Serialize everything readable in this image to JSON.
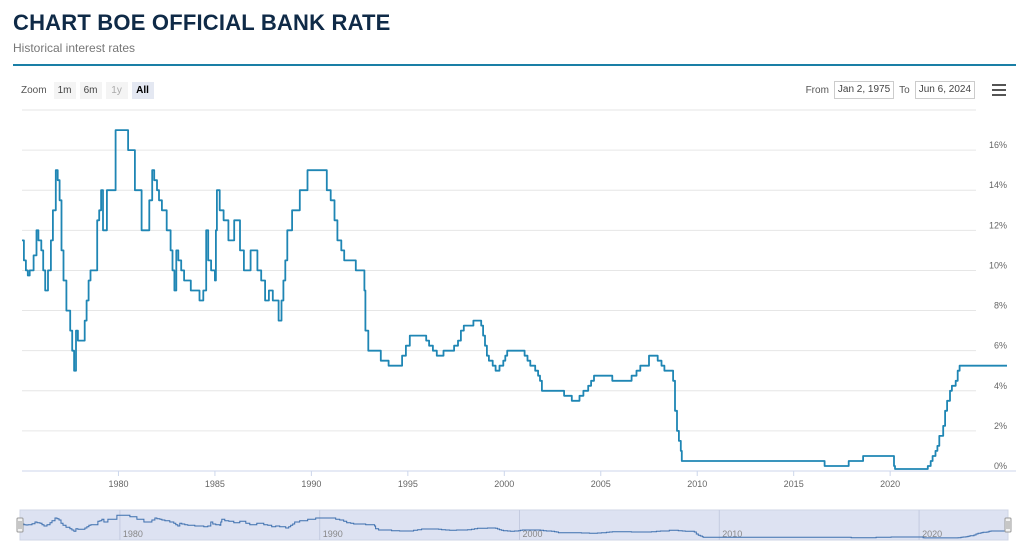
{
  "header": {
    "title": "CHART BOE OFFICIAL BANK RATE",
    "subtitle": "Historical interest rates"
  },
  "toolbar": {
    "zoom_label": "Zoom",
    "zoom_buttons": [
      {
        "label": "1m",
        "state": "normal"
      },
      {
        "label": "6m",
        "state": "normal"
      },
      {
        "label": "1y",
        "state": "disabled"
      },
      {
        "label": "All",
        "state": "active"
      }
    ],
    "from_label": "From",
    "from_value": "Jan 2, 1975",
    "to_label": "To",
    "to_value": "Jun 6, 2024",
    "menu_icon": "hamburger-menu-icon"
  },
  "colors": {
    "line": "#1f86b4",
    "grid": "#e6e6e6",
    "navigator_fill": "#dde2f2",
    "navigator_line": "#3d6fae"
  },
  "chart_data": {
    "type": "line",
    "title": "CHART BOE OFFICIAL BANK RATE",
    "subtitle": "Historical interest rates",
    "y_axis_position": "right",
    "xlim": [
      1975.0,
      2024.45
    ],
    "ylim": [
      0,
      18
    ],
    "x_ticks": [
      1980,
      1985,
      1990,
      1995,
      2000,
      2005,
      2010,
      2015,
      2020
    ],
    "x_tick_labels": [
      "1980",
      "1985",
      "1990",
      "1995",
      "2000",
      "2005",
      "2010",
      "2015",
      "2020"
    ],
    "y_ticks": [
      0,
      2,
      4,
      6,
      8,
      10,
      12,
      14,
      16
    ],
    "y_tick_labels": [
      "0%",
      "2%",
      "4%",
      "6%",
      "8%",
      "10%",
      "12%",
      "14%",
      "16%"
    ],
    "grid": true,
    "navigator": {
      "x_ticks": [
        1980,
        1990,
        2000,
        2010,
        2020
      ],
      "x_tick_labels": [
        "1980",
        "1990",
        "2000",
        "2010",
        "2020"
      ]
    },
    "series": [
      {
        "step": true,
        "points": [
          [
            1975.0,
            11.5
          ],
          [
            1975.1,
            10.5
          ],
          [
            1975.2,
            10.0
          ],
          [
            1975.3,
            9.75
          ],
          [
            1975.4,
            10.0
          ],
          [
            1975.6,
            10.75
          ],
          [
            1975.75,
            12.0
          ],
          [
            1975.85,
            11.5
          ],
          [
            1976.0,
            11.0
          ],
          [
            1976.1,
            10.0
          ],
          [
            1976.2,
            9.0
          ],
          [
            1976.35,
            10.0
          ],
          [
            1976.5,
            11.5
          ],
          [
            1976.6,
            13.0
          ],
          [
            1976.75,
            15.0
          ],
          [
            1976.85,
            14.5
          ],
          [
            1976.95,
            13.5
          ],
          [
            1977.05,
            11.0
          ],
          [
            1977.15,
            9.5
          ],
          [
            1977.3,
            8.0
          ],
          [
            1977.5,
            7.0
          ],
          [
            1977.6,
            6.0
          ],
          [
            1977.7,
            5.0
          ],
          [
            1977.8,
            7.0
          ],
          [
            1977.9,
            6.5
          ],
          [
            1978.1,
            6.5
          ],
          [
            1978.25,
            7.5
          ],
          [
            1978.35,
            8.5
          ],
          [
            1978.45,
            9.5
          ],
          [
            1978.55,
            10.0
          ],
          [
            1978.9,
            12.5
          ],
          [
            1979.0,
            13.0
          ],
          [
            1979.1,
            14.0
          ],
          [
            1979.2,
            12.0
          ],
          [
            1979.4,
            14.0
          ],
          [
            1979.85,
            17.0
          ],
          [
            1980.5,
            16.0
          ],
          [
            1980.85,
            14.0
          ],
          [
            1981.2,
            12.0
          ],
          [
            1981.6,
            13.5
          ],
          [
            1981.75,
            15.0
          ],
          [
            1981.85,
            14.5
          ],
          [
            1982.0,
            14.0
          ],
          [
            1982.1,
            13.5
          ],
          [
            1982.25,
            13.0
          ],
          [
            1982.5,
            12.0
          ],
          [
            1982.7,
            11.0
          ],
          [
            1982.8,
            10.0
          ],
          [
            1982.9,
            9.0
          ],
          [
            1983.0,
            11.0
          ],
          [
            1983.1,
            10.5
          ],
          [
            1983.25,
            10.0
          ],
          [
            1983.4,
            9.5
          ],
          [
            1983.75,
            9.0
          ],
          [
            1984.2,
            8.5
          ],
          [
            1984.4,
            9.0
          ],
          [
            1984.55,
            12.0
          ],
          [
            1984.65,
            10.5
          ],
          [
            1984.8,
            10.0
          ],
          [
            1985.0,
            9.5
          ],
          [
            1985.05,
            12.0
          ],
          [
            1985.1,
            14.0
          ],
          [
            1985.25,
            13.0
          ],
          [
            1985.45,
            12.5
          ],
          [
            1985.7,
            11.5
          ],
          [
            1986.0,
            12.5
          ],
          [
            1986.3,
            11.0
          ],
          [
            1986.5,
            10.0
          ],
          [
            1986.85,
            11.0
          ],
          [
            1987.2,
            10.0
          ],
          [
            1987.4,
            9.5
          ],
          [
            1987.6,
            8.5
          ],
          [
            1987.8,
            9.0
          ],
          [
            1988.0,
            8.5
          ],
          [
            1988.3,
            7.5
          ],
          [
            1988.45,
            8.5
          ],
          [
            1988.55,
            9.5
          ],
          [
            1988.65,
            10.5
          ],
          [
            1988.75,
            12.0
          ],
          [
            1989.0,
            13.0
          ],
          [
            1989.4,
            14.0
          ],
          [
            1989.8,
            15.0
          ],
          [
            1990.8,
            14.0
          ],
          [
            1991.0,
            13.5
          ],
          [
            1991.2,
            12.5
          ],
          [
            1991.35,
            11.5
          ],
          [
            1991.55,
            11.0
          ],
          [
            1991.7,
            10.5
          ],
          [
            1992.3,
            10.0
          ],
          [
            1992.75,
            9.0
          ],
          [
            1992.8,
            7.0
          ],
          [
            1992.95,
            6.0
          ],
          [
            1993.6,
            5.5
          ],
          [
            1994.0,
            5.25
          ],
          [
            1994.7,
            5.75
          ],
          [
            1994.9,
            6.25
          ],
          [
            1995.1,
            6.75
          ],
          [
            1995.95,
            6.5
          ],
          [
            1996.1,
            6.25
          ],
          [
            1996.3,
            6.0
          ],
          [
            1996.5,
            5.75
          ],
          [
            1996.85,
            6.0
          ],
          [
            1997.4,
            6.25
          ],
          [
            1997.6,
            6.5
          ],
          [
            1997.75,
            7.0
          ],
          [
            1997.9,
            7.25
          ],
          [
            1998.4,
            7.5
          ],
          [
            1998.8,
            7.25
          ],
          [
            1998.9,
            6.75
          ],
          [
            1999.0,
            6.25
          ],
          [
            1999.1,
            5.75
          ],
          [
            1999.2,
            5.5
          ],
          [
            1999.4,
            5.25
          ],
          [
            1999.55,
            5.0
          ],
          [
            1999.75,
            5.25
          ],
          [
            1999.95,
            5.5
          ],
          [
            2000.05,
            5.75
          ],
          [
            2000.15,
            6.0
          ],
          [
            2001.05,
            5.75
          ],
          [
            2001.2,
            5.5
          ],
          [
            2001.35,
            5.25
          ],
          [
            2001.6,
            5.0
          ],
          [
            2001.75,
            4.75
          ],
          [
            2001.85,
            4.5
          ],
          [
            2001.95,
            4.0
          ],
          [
            2003.1,
            3.75
          ],
          [
            2003.5,
            3.5
          ],
          [
            2003.9,
            3.75
          ],
          [
            2004.1,
            4.0
          ],
          [
            2004.35,
            4.25
          ],
          [
            2004.5,
            4.5
          ],
          [
            2004.65,
            4.75
          ],
          [
            2005.6,
            4.5
          ],
          [
            2006.6,
            4.75
          ],
          [
            2006.85,
            5.0
          ],
          [
            2007.05,
            5.25
          ],
          [
            2007.5,
            5.75
          ],
          [
            2007.95,
            5.5
          ],
          [
            2008.15,
            5.25
          ],
          [
            2008.3,
            5.0
          ],
          [
            2008.75,
            4.5
          ],
          [
            2008.85,
            3.0
          ],
          [
            2008.95,
            2.0
          ],
          [
            2009.05,
            1.5
          ],
          [
            2009.15,
            1.0
          ],
          [
            2009.2,
            0.5
          ],
          [
            2016.6,
            0.25
          ],
          [
            2017.85,
            0.5
          ],
          [
            2018.6,
            0.75
          ],
          [
            2020.2,
            0.25
          ],
          [
            2020.25,
            0.1
          ],
          [
            2021.95,
            0.25
          ],
          [
            2022.1,
            0.5
          ],
          [
            2022.2,
            0.75
          ],
          [
            2022.35,
            1.0
          ],
          [
            2022.45,
            1.25
          ],
          [
            2022.55,
            1.75
          ],
          [
            2022.75,
            2.25
          ],
          [
            2022.85,
            3.0
          ],
          [
            2022.95,
            3.5
          ],
          [
            2023.1,
            4.0
          ],
          [
            2023.2,
            4.25
          ],
          [
            2023.4,
            4.5
          ],
          [
            2023.5,
            5.0
          ],
          [
            2023.6,
            5.25
          ],
          [
            2024.45,
            5.25
          ]
        ]
      }
    ]
  }
}
